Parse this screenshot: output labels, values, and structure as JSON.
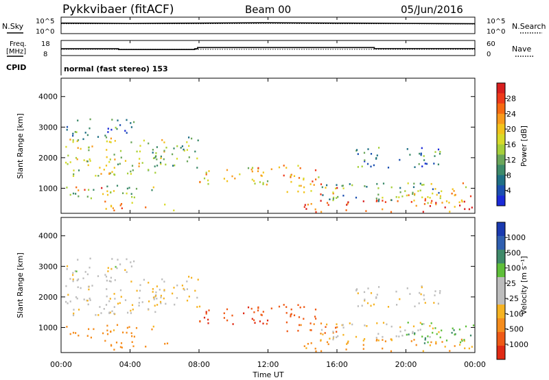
{
  "header": {
    "station": "Pykkvibaer (fitACF)",
    "beam": "Beam 00",
    "date": "05/Jun/2016"
  },
  "side_labels": {
    "nsky": "N.Sky",
    "nsearch": "N.Search",
    "freq_line1": "Freq.",
    "freq_line2": "[MHz]",
    "nave": "Nave",
    "cpid": "CPID",
    "cpid_value": "normal (fast stereo) 153"
  },
  "noise_axis": {
    "left_ticks": [
      "10^5",
      "10^0"
    ],
    "right_ticks": [
      "10^5",
      "10^0"
    ]
  },
  "freq_axis": {
    "left_ticks": [
      "18",
      "8"
    ],
    "right_ticks": [
      "60",
      "0"
    ]
  },
  "time_axis": {
    "label": "Time UT",
    "ticks": [
      "00:00",
      "04:00",
      "08:00",
      "12:00",
      "16:00",
      "20:00",
      "00:00"
    ]
  },
  "colorbars": {
    "power": {
      "label": "Power [dB]",
      "ticks": [
        "28",
        "24",
        "20",
        "16",
        "12",
        "8",
        "4"
      ],
      "colors": [
        "#d81e1e",
        "#ee3a1a",
        "#f66a12",
        "#f89a1c",
        "#f2c31c",
        "#d8da2a",
        "#a6cf3a",
        "#6aa65a",
        "#3d8a6a",
        "#1f6f85",
        "#1b4fb0",
        "#1a2ad8"
      ]
    },
    "velocity": {
      "label": "Velocity [m s⁻¹]",
      "ticks": [
        "1000",
        "500",
        "100",
        "25",
        "-25",
        "-100",
        "-500",
        "-1000"
      ],
      "colors": [
        "#1a3ab0",
        "#2f5fb0",
        "#3f8a6a",
        "#5fbf3a",
        "#bdbdbd",
        "#bdbdbd",
        "#f6b322",
        "#f58c1c",
        "#ef5a16",
        "#e02a14"
      ]
    }
  },
  "chart_data": [
    {
      "type": "line",
      "title": "N.Sky / N.Search",
      "xlim": [
        "00:00",
        "24:00"
      ],
      "series": [
        {
          "name": "N.Sky",
          "x": [
            "00:00",
            "04:00",
            "08:00",
            "12:00",
            "16:00",
            "20:00",
            "24:00"
          ],
          "values": [
            3.2,
            3.1,
            3.2,
            3.3,
            3.2,
            3.1,
            3.0
          ]
        },
        {
          "name": "N.Search",
          "x": [
            "00:00",
            "04:00",
            "08:00",
            "12:00",
            "16:00",
            "20:00",
            "24:00"
          ],
          "values": [
            3.0,
            3.0,
            3.0,
            3.1,
            3.0,
            3.0,
            2.9
          ]
        }
      ]
    },
    {
      "type": "line",
      "title": "Freq. / Nave",
      "xlim": [
        "00:00",
        "24:00"
      ],
      "series": [
        {
          "name": "Freq. [MHz]",
          "x": [
            "00:00",
            "02:40",
            "03:20",
            "07:45",
            "07:55",
            "18:00",
            "18:10",
            "24:00"
          ],
          "values": [
            12.5,
            12.5,
            12.0,
            12.5,
            13.3,
            13.3,
            12.6,
            12.6
          ]
        },
        {
          "name": "Nave",
          "x": [
            "00:00",
            "12:00",
            "24:00"
          ],
          "values": [
            25,
            25,
            25
          ]
        }
      ]
    },
    {
      "type": "heatmap",
      "title": "Power",
      "xlabel": "Time UT",
      "ylabel": "Slant Range [km]",
      "xlim": [
        "00:00",
        "24:00"
      ],
      "ylim": [
        180,
        4600
      ],
      "yticks": [
        1000,
        2000,
        3000,
        4000
      ],
      "clim": [
        0,
        30
      ],
      "unit": "dB",
      "blobs": [
        {
          "t0": 0.2,
          "t1": 6.0,
          "r0": 1400,
          "r1": 2700,
          "v": 16
        },
        {
          "t0": 0.3,
          "t1": 4.2,
          "r0": 2600,
          "r1": 3300,
          "v": 7
        },
        {
          "t0": 0.2,
          "t1": 5.5,
          "r0": 700,
          "r1": 1150,
          "v": 14
        },
        {
          "t0": 0.5,
          "t1": 2.5,
          "r0": 900,
          "r1": 1100,
          "v": 24
        },
        {
          "t0": 2.5,
          "t1": 6.5,
          "r0": 300,
          "r1": 600,
          "v": 22
        },
        {
          "t0": 5.0,
          "t1": 8.0,
          "r0": 1700,
          "r1": 2700,
          "v": 12
        },
        {
          "t0": 8.0,
          "t1": 12.0,
          "r0": 1100,
          "r1": 1700,
          "v": 18
        },
        {
          "t0": 11.0,
          "t1": 15.0,
          "r0": 1300,
          "r1": 1800,
          "v": 20
        },
        {
          "t0": 13.0,
          "t1": 16.0,
          "r0": 800,
          "r1": 1300,
          "v": 22
        },
        {
          "t0": 14.0,
          "t1": 24.0,
          "r0": 250,
          "r1": 650,
          "v": 26
        },
        {
          "t0": 15.0,
          "t1": 22.0,
          "r0": 600,
          "r1": 1200,
          "v": 10
        },
        {
          "t0": 17.0,
          "t1": 22.0,
          "r0": 1700,
          "r1": 2400,
          "v": 7
        },
        {
          "t0": 20.0,
          "t1": 24.0,
          "r0": 500,
          "r1": 1200,
          "v": 20
        }
      ]
    },
    {
      "type": "heatmap",
      "title": "Velocity",
      "xlabel": "Time UT",
      "ylabel": "Slant Range [km]",
      "xlim": [
        "00:00",
        "24:00"
      ],
      "ylim": [
        180,
        4600
      ],
      "yticks": [
        1000,
        2000,
        3000,
        4000
      ],
      "clim": [
        -1000,
        1000
      ],
      "unit": "m s-1",
      "blobs": [
        {
          "t0": 0.2,
          "t1": 6.0,
          "r0": 1400,
          "r1": 2700,
          "v": 0
        },
        {
          "t0": 0.3,
          "t1": 4.2,
          "r0": 2600,
          "r1": 3300,
          "v": 10
        },
        {
          "t0": 0.2,
          "t1": 5.5,
          "r0": 700,
          "r1": 1150,
          "v": -150
        },
        {
          "t0": 2.5,
          "t1": 6.5,
          "r0": 300,
          "r1": 600,
          "v": -200
        },
        {
          "t0": 5.0,
          "t1": 8.0,
          "r0": 1700,
          "r1": 2700,
          "v": -20
        },
        {
          "t0": 8.0,
          "t1": 12.0,
          "r0": 1100,
          "r1": 1700,
          "v": -600
        },
        {
          "t0": 11.0,
          "t1": 15.0,
          "r0": 1300,
          "r1": 1800,
          "v": -500
        },
        {
          "t0": 13.0,
          "t1": 16.0,
          "r0": 800,
          "r1": 1300,
          "v": -300
        },
        {
          "t0": 14.0,
          "t1": 24.0,
          "r0": 250,
          "r1": 650,
          "v": -120
        },
        {
          "t0": 15.0,
          "t1": 22.0,
          "r0": 600,
          "r1": 1200,
          "v": -20
        },
        {
          "t0": 17.0,
          "t1": 22.0,
          "r0": 1700,
          "r1": 2400,
          "v": 0
        },
        {
          "t0": 20.0,
          "t1": 24.0,
          "r0": 500,
          "r1": 1200,
          "v": 300
        }
      ]
    }
  ]
}
